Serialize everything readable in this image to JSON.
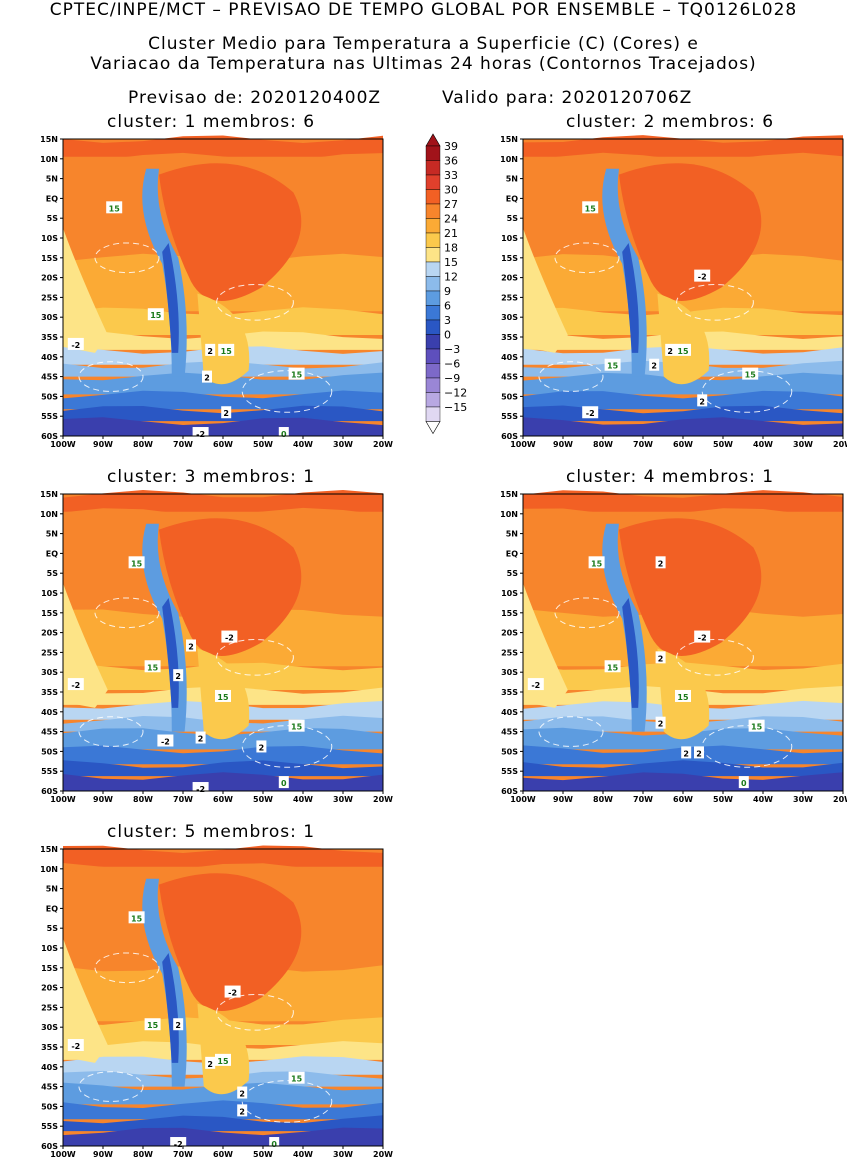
{
  "header": {
    "line1": "CPTEC/INPE/MCT – PREVISAO DE TEMPO GLOBAL POR ENSEMBLE – TQ0126L028",
    "line2": "Cluster Medio para Temperatura a Superficie (C) (Cores) e",
    "line3": "Variacao da Temperatura nas Ultimas 24 horas (Contornos Tracejados)",
    "forecast_label": "Previsao de: 2020120400Z",
    "valid_label": "Valido para: 2020120706Z"
  },
  "axes": {
    "lat_labels": [
      "15N",
      "10N",
      "5N",
      "EQ",
      "5S",
      "10S",
      "15S",
      "20S",
      "25S",
      "30S",
      "35S",
      "40S",
      "45S",
      "50S",
      "55S",
      "60S"
    ],
    "lon_labels": [
      "100W",
      "90W",
      "80W",
      "70W",
      "60W",
      "50W",
      "40W",
      "30W",
      "20W"
    ]
  },
  "colorbar": {
    "labels": [
      "39",
      "36",
      "33",
      "30",
      "27",
      "24",
      "21",
      "18",
      "15",
      "12",
      "9",
      "6",
      "3",
      "0",
      "-3",
      "-6",
      "-9",
      "-12",
      "-15"
    ],
    "colors": [
      "#a1131a",
      "#c62a24",
      "#e0402c",
      "#f26024",
      "#f7852c",
      "#fbaa35",
      "#fbc94c",
      "#fde487",
      "#b9d6f2",
      "#8cbbeb",
      "#5d9ce0",
      "#3b78d6",
      "#2a57c4",
      "#3a3fad",
      "#5e4fbd",
      "#7d69c9",
      "#9a86d6",
      "#b8a8e2",
      "#e0d8f2"
    ]
  },
  "panels": [
    {
      "title": "cluster: 1   membros: 6",
      "labels": [
        "15",
        "15",
        "15",
        "15",
        "-2",
        "2",
        "2",
        "2",
        "-2",
        "0"
      ]
    },
    {
      "title": "cluster: 2   membros: 6",
      "labels": [
        "15",
        "15",
        "15",
        "15",
        "-2",
        "2",
        "2",
        "2",
        "-2"
      ]
    },
    {
      "title": "cluster: 3   membros: 1",
      "labels": [
        "15",
        "15",
        "15",
        "15",
        "-2",
        "2",
        "2",
        "-2",
        "2",
        "2",
        "-2",
        "-2",
        "0"
      ]
    },
    {
      "title": "cluster: 4   membros: 1",
      "labels": [
        "15",
        "15",
        "15",
        "15",
        "-2",
        "2",
        "2",
        "-2",
        "2",
        "2",
        "2",
        "0"
      ]
    },
    {
      "title": "cluster: 5   membros: 1",
      "labels": [
        "15",
        "15",
        "15",
        "15",
        "-2",
        "2",
        "-2",
        "2",
        "2",
        "2",
        "-2",
        "0"
      ]
    }
  ],
  "chart_data": {
    "type": "heatmap",
    "variable": "surface temperature (C)",
    "contours": "24h temperature change (dashed)",
    "lat_range": [
      "60S",
      "15N"
    ],
    "lon_range": [
      "100W",
      "20W"
    ],
    "levels": [
      39,
      36,
      33,
      30,
      27,
      24,
      21,
      18,
      15,
      12,
      9,
      6,
      3,
      0,
      -3,
      -6,
      -9,
      -12,
      -15
    ]
  }
}
